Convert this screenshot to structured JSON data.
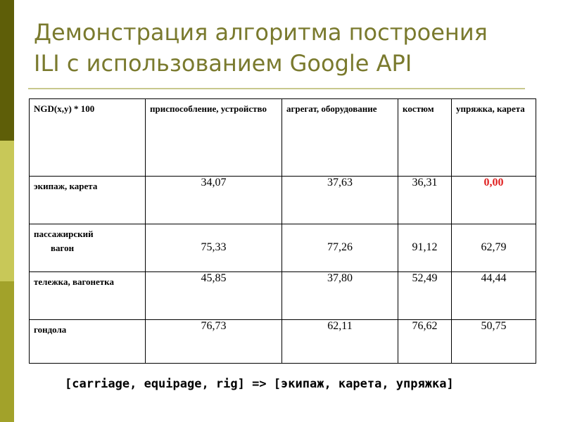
{
  "slide": {
    "title_line1": "Демонстрация алгоритма построения",
    "title_line2": "ILI с использованием Google API",
    "footer_text": "[carriage, equipage, rig] => [экипаж, карета, упряжка]",
    "accent_color": "#7a7a2e",
    "highlight_color": "#e02020"
  },
  "table": {
    "corner": "NGD(x,y) * 100",
    "columns": [
      "приспособление, устройство",
      "агрегат, оборудование",
      "костюм",
      "упряжка, карета"
    ],
    "rows": [
      {
        "label": "экипаж, карета",
        "values": [
          "34,07",
          "37,63",
          "36,31",
          "0,00"
        ]
      },
      {
        "label_line1": "пассажирский",
        "label_line2": "вагон",
        "values": [
          "75,33",
          "77,26",
          "91,12",
          "62,79"
        ]
      },
      {
        "label": "тележка, вагонетка",
        "values": [
          "45,85",
          "37,80",
          "52,49",
          "44,44"
        ]
      },
      {
        "label": "гондола",
        "values": [
          "76,73",
          "62,11",
          "76,62",
          "50,75"
        ]
      }
    ]
  }
}
